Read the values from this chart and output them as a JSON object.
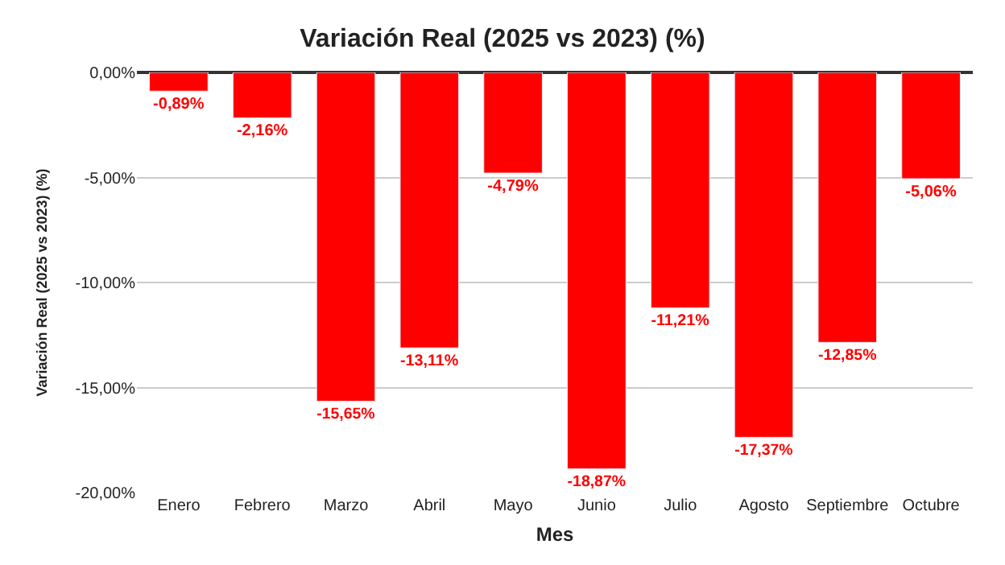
{
  "chart_data": {
    "type": "bar",
    "title": "Variación Real (2025 vs 2023) (%)",
    "xlabel": "Mes",
    "ylabel": "Variación Real (2025 vs 2023) (%)",
    "categories": [
      "Enero",
      "Febrero",
      "Marzo",
      "Abril",
      "Mayo",
      "Junio",
      "Julio",
      "Agosto",
      "Septiembre",
      "Octubre"
    ],
    "values": [
      -0.89,
      -2.16,
      -15.65,
      -13.11,
      -4.79,
      -18.87,
      -11.21,
      -17.37,
      -12.85,
      -5.06
    ],
    "value_labels": [
      "-0,89%",
      "-2,16%",
      "-15,65%",
      "-13,11%",
      "-4,79%",
      "-18,87%",
      "-11,21%",
      "-17,37%",
      "-12,85%",
      "-5,06%"
    ],
    "color": "#ff0000",
    "ylim": [
      -20,
      0
    ],
    "yticks": [
      {
        "value": 0,
        "label": "0,00%"
      },
      {
        "value": -5,
        "label": "-5,00%"
      },
      {
        "value": -10,
        "label": "-10,00%"
      },
      {
        "value": -15,
        "label": "-15,00%"
      },
      {
        "value": -20,
        "label": "-20,00%"
      }
    ],
    "grid": "y"
  }
}
